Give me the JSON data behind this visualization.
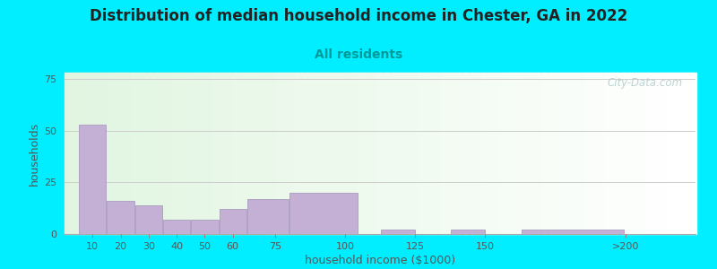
{
  "title": "Distribution of median household income in Chester, GA in 2022",
  "subtitle": "All residents",
  "xlabel": "household income ($1000)",
  "ylabel": "households",
  "background_outer": "#00EEFF",
  "bar_color": "#c4b0d5",
  "bar_edge_color": "#a090b8",
  "values": [
    53,
    16,
    14,
    7,
    7,
    12,
    17,
    20,
    2,
    2,
    2
  ],
  "bar_widths": [
    10,
    10,
    10,
    10,
    10,
    10,
    15,
    25,
    12.5,
    12.5,
    37.5
  ],
  "bar_lefts": [
    5,
    15,
    25,
    35,
    45,
    55,
    65,
    80,
    112.5,
    137.5,
    162.5
  ],
  "ylim": [
    0,
    78
  ],
  "yticks": [
    0,
    25,
    50,
    75
  ],
  "xlim": [
    0,
    225
  ],
  "xtick_positions": [
    10,
    20,
    30,
    40,
    50,
    60,
    75,
    100,
    125,
    150,
    200
  ],
  "xtick_labels": [
    "10",
    "20",
    "30",
    "40",
    "50",
    "60",
    "75",
    "100",
    "125",
    "150",
    ">200"
  ],
  "title_fontsize": 12,
  "subtitle_fontsize": 10,
  "axis_label_fontsize": 9,
  "tick_fontsize": 8,
  "watermark_text": "City-Data.com",
  "grid_color": "#cccccc",
  "title_color": "#222222",
  "subtitle_color": "#009999",
  "label_color": "#555555",
  "tick_color": "#555555"
}
